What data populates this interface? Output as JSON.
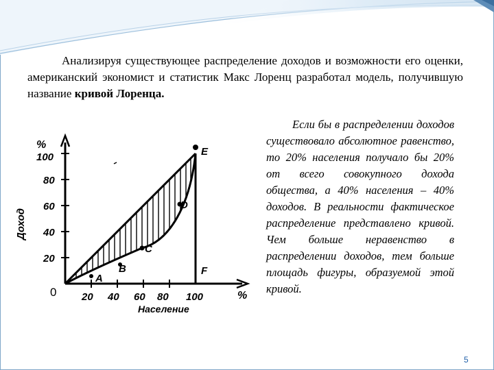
{
  "slide": {
    "intro": {
      "text": "Анализируя существующее распределение доходов и возможности его оценки, американский экономист и статистик Макс Лоренц разработал модель, получившую название ",
      "emphasis": "кривой Лоренца."
    },
    "explanation": "Если бы в распределении доходов существовало абсолютное равенство, то 20% населения получало бы 20% от всего совокупного дохода общества, а 40% населения – 40% доходов. В реальности фактическое распределение представлено кривой. Чем больше неравенство в распределении доходов, тем больше площадь фигуры, образуемой этой кривой.",
    "page_number": "5"
  },
  "figure": {
    "y_axis_unit": "%",
    "y_axis_label": "Доход",
    "x_axis_unit": "%",
    "x_axis_label": "Население",
    "origin_label": "0",
    "y_ticks": [
      "100",
      "80",
      "60",
      "40",
      "20"
    ],
    "x_ticks": [
      "20",
      "40",
      "60",
      "80",
      "100"
    ],
    "points": {
      "A": "A",
      "B": "B",
      "C": "C",
      "D": "D",
      "E": "E",
      "F": "F"
    }
  },
  "colors": {
    "frame": "#7fa6c8",
    "page_number": "#1f5fa8",
    "ink": "#000000"
  }
}
